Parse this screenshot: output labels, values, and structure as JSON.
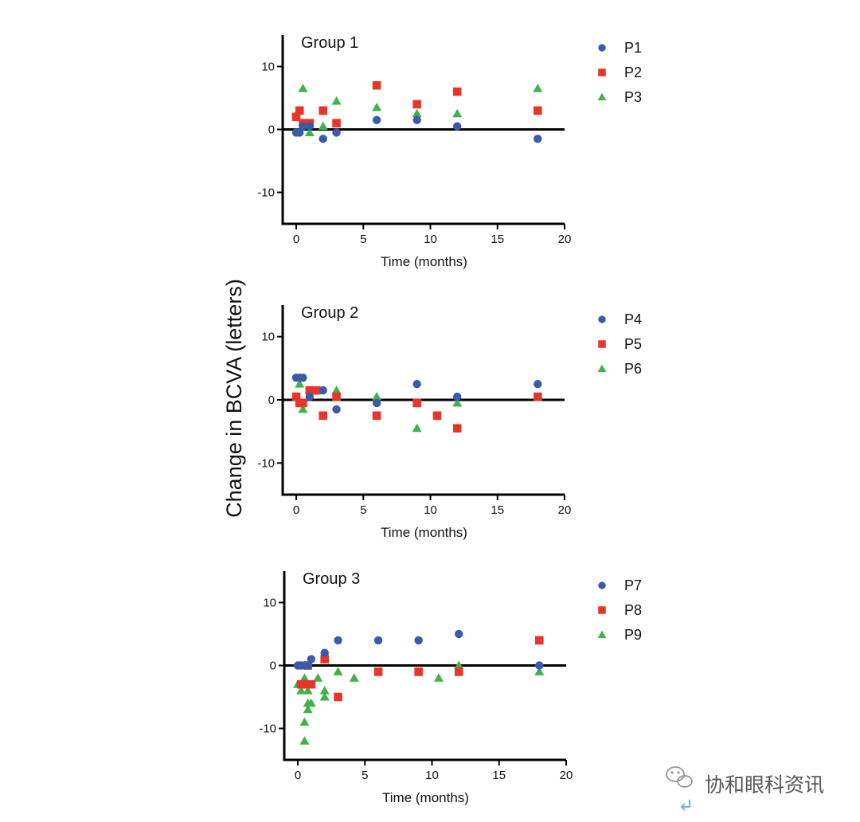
{
  "figure": {
    "ylabel": "Change in BCVA (letters)"
  },
  "colors": {
    "blue": "#3a5ba9",
    "red": "#e8352a",
    "green": "#3fb24a",
    "axis": "#000000",
    "watermark": "#8a8a8a"
  },
  "icons": {
    "blue": "circle-marker",
    "red": "square-marker",
    "green": "triangle-marker",
    "watermark": "wechat-icon",
    "enter": "return-arrow-icon"
  },
  "watermark": {
    "text": "协和眼科资讯"
  },
  "chart_data": [
    {
      "type": "scatter",
      "title": "Group 1",
      "xlabel": "Time (months)",
      "ylabel": "Change in BCVA (letters)",
      "xlim": [
        0,
        20
      ],
      "ylim": [
        -15,
        15
      ],
      "xticks": [
        0,
        5,
        10,
        15,
        20
      ],
      "yticks": [
        -10,
        0,
        10
      ],
      "zero_line": true,
      "legend": "right",
      "series": [
        {
          "name": "P1",
          "marker": "circle",
          "color": "blue",
          "points": [
            [
              0,
              -0.5
            ],
            [
              0.25,
              -0.5
            ],
            [
              0.5,
              0.5
            ],
            [
              1,
              0.5
            ],
            [
              2,
              -1.5
            ],
            [
              3,
              -0.5
            ],
            [
              6,
              1.5
            ],
            [
              9,
              1.5
            ],
            [
              12,
              0.5
            ],
            [
              18,
              -1.5
            ]
          ]
        },
        {
          "name": "P2",
          "marker": "square",
          "color": "red",
          "points": [
            [
              0,
              2
            ],
            [
              0.25,
              3
            ],
            [
              0.5,
              1
            ],
            [
              1,
              1
            ],
            [
              2,
              3
            ],
            [
              3,
              1
            ],
            [
              6,
              7
            ],
            [
              9,
              4
            ],
            [
              12,
              6
            ],
            [
              18,
              3
            ]
          ]
        },
        {
          "name": "P3",
          "marker": "triangle",
          "color": "green",
          "points": [
            [
              0.5,
              6.5
            ],
            [
              1,
              -0.5
            ],
            [
              2,
              0.5
            ],
            [
              3,
              4.5
            ],
            [
              6,
              3.5
            ],
            [
              9,
              2.5
            ],
            [
              12,
              2.5
            ],
            [
              18,
              6.5
            ]
          ]
        }
      ]
    },
    {
      "type": "scatter",
      "title": "Group 2",
      "xlabel": "Time (months)",
      "ylabel": "Change in BCVA (letters)",
      "xlim": [
        0,
        20
      ],
      "ylim": [
        -15,
        15
      ],
      "xticks": [
        0,
        5,
        10,
        15,
        20
      ],
      "yticks": [
        -10,
        0,
        10
      ],
      "zero_line": true,
      "legend": "right",
      "series": [
        {
          "name": "P4",
          "marker": "circle",
          "color": "blue",
          "points": [
            [
              0,
              3.5
            ],
            [
              0.25,
              3.5
            ],
            [
              0.5,
              3.5
            ],
            [
              1,
              0.5
            ],
            [
              2,
              1.5
            ],
            [
              3,
              -1.5
            ],
            [
              6,
              -0.5
            ],
            [
              9,
              2.5
            ],
            [
              12,
              0.5
            ],
            [
              18,
              2.5
            ]
          ]
        },
        {
          "name": "P5",
          "marker": "square",
          "color": "red",
          "points": [
            [
              0,
              0.5
            ],
            [
              0.25,
              -0.5
            ],
            [
              0.5,
              -0.5
            ],
            [
              1,
              1.5
            ],
            [
              1.5,
              1.5
            ],
            [
              2,
              -2.5
            ],
            [
              3,
              0.5
            ],
            [
              6,
              -2.5
            ],
            [
              9,
              -0.5
            ],
            [
              10.5,
              -2.5
            ],
            [
              12,
              -4.5
            ],
            [
              18,
              0.5
            ]
          ]
        },
        {
          "name": "P6",
          "marker": "triangle",
          "color": "green",
          "points": [
            [
              0.25,
              2.5
            ],
            [
              0.5,
              -1.5
            ],
            [
              1,
              1.5
            ],
            [
              1.5,
              1.5
            ],
            [
              3,
              1.5
            ],
            [
              6,
              0.5
            ],
            [
              9,
              -4.5
            ],
            [
              12,
              -0.5
            ]
          ]
        }
      ]
    },
    {
      "type": "scatter",
      "title": "Group 3",
      "xlabel": "Time (months)",
      "ylabel": "Change in BCVA (letters)",
      "xlim": [
        0,
        20
      ],
      "ylim": [
        -15,
        15
      ],
      "xticks": [
        0,
        5,
        10,
        15,
        20
      ],
      "yticks": [
        -10,
        0,
        10
      ],
      "zero_line": true,
      "legend": "right",
      "series": [
        {
          "name": "P7",
          "marker": "circle",
          "color": "blue",
          "points": [
            [
              0,
              0
            ],
            [
              0.25,
              0
            ],
            [
              0.5,
              0
            ],
            [
              0.75,
              0
            ],
            [
              1,
              1
            ],
            [
              2,
              2
            ],
            [
              3,
              4
            ],
            [
              6,
              4
            ],
            [
              9,
              4
            ],
            [
              12,
              5
            ],
            [
              18,
              0
            ]
          ]
        },
        {
          "name": "P8",
          "marker": "square",
          "color": "red",
          "points": [
            [
              0.25,
              -3
            ],
            [
              0.5,
              -3
            ],
            [
              0.75,
              0
            ],
            [
              1,
              -3
            ],
            [
              2,
              1
            ],
            [
              3,
              -5
            ],
            [
              6,
              -1
            ],
            [
              9,
              -1
            ],
            [
              12,
              -1
            ],
            [
              18,
              4
            ]
          ]
        },
        {
          "name": "P9",
          "marker": "triangle",
          "color": "green",
          "points": [
            [
              0,
              -3
            ],
            [
              0.25,
              -4
            ],
            [
              0.5,
              -12
            ],
            [
              0.5,
              -9
            ],
            [
              0.5,
              -2
            ],
            [
              0.75,
              -4
            ],
            [
              0.75,
              -7
            ],
            [
              0.75,
              -6
            ],
            [
              1,
              -6
            ],
            [
              1.5,
              -2
            ],
            [
              2,
              -4
            ],
            [
              2,
              -5
            ],
            [
              3,
              -1
            ],
            [
              4.2,
              -2
            ],
            [
              10.5,
              -2
            ],
            [
              12,
              0
            ],
            [
              18,
              -1
            ]
          ]
        }
      ]
    }
  ]
}
